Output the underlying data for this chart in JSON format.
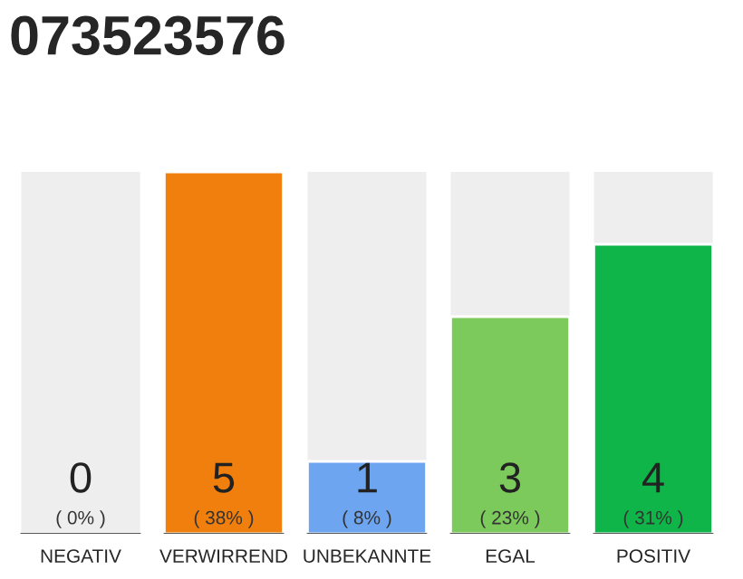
{
  "chart_data": {
    "type": "bar",
    "title": "073523576",
    "categories": [
      "NEGATIV",
      "VERWIRREND",
      "UNBEKANNTE",
      "EGAL",
      "POSITIV"
    ],
    "values": [
      0,
      5,
      1,
      3,
      4
    ],
    "colors": [
      null,
      "#f07f0d",
      "#6ea5f0",
      "#7dca5c",
      "#0fb548"
    ],
    "value_labels": [
      "0\n( 0% )",
      "5\n( 38% )",
      "1\n( 8% )",
      "3\n( 23% )",
      "4\n( 31% )"
    ],
    "grid": false,
    "legend": false
  }
}
